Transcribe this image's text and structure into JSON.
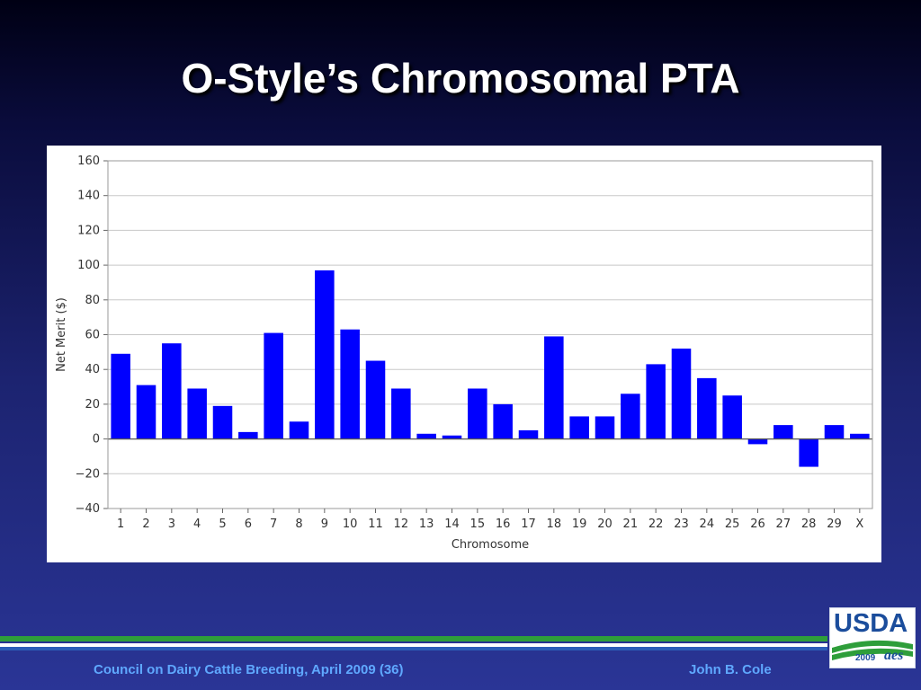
{
  "slide": {
    "title": "O-Style’s Chromosomal PTA",
    "footer_left": "Council on Dairy Cattle Breeding, April 2009 (36)",
    "footer_right": "John B. Cole"
  },
  "logo": {
    "text": "USDA",
    "year": "2009",
    "mark": "aes"
  },
  "colors": {
    "bar": "#0000ff",
    "grid": "#c8c8c8",
    "footer_text": "#5fa8ff",
    "stripe_green": "#2e9e3a",
    "stripe_blue": "#2c5fb8"
  },
  "chart_data": {
    "type": "bar",
    "title": "",
    "xlabel": "Chromosome",
    "ylabel": "Net Merit ($)",
    "ylim": [
      -40,
      160
    ],
    "yticks": [
      -40,
      -20,
      0,
      20,
      40,
      60,
      80,
      100,
      120,
      140,
      160
    ],
    "grid": true,
    "categories": [
      "1",
      "2",
      "3",
      "4",
      "5",
      "6",
      "7",
      "8",
      "9",
      "10",
      "11",
      "12",
      "13",
      "14",
      "15",
      "16",
      "17",
      "18",
      "19",
      "20",
      "21",
      "22",
      "23",
      "24",
      "25",
      "26",
      "27",
      "28",
      "29",
      "X"
    ],
    "values": [
      49,
      31,
      55,
      29,
      19,
      4,
      61,
      10,
      97,
      63,
      45,
      29,
      3,
      2,
      29,
      20,
      5,
      59,
      13,
      13,
      26,
      43,
      52,
      35,
      25,
      -3,
      8,
      -16,
      8,
      3
    ]
  }
}
